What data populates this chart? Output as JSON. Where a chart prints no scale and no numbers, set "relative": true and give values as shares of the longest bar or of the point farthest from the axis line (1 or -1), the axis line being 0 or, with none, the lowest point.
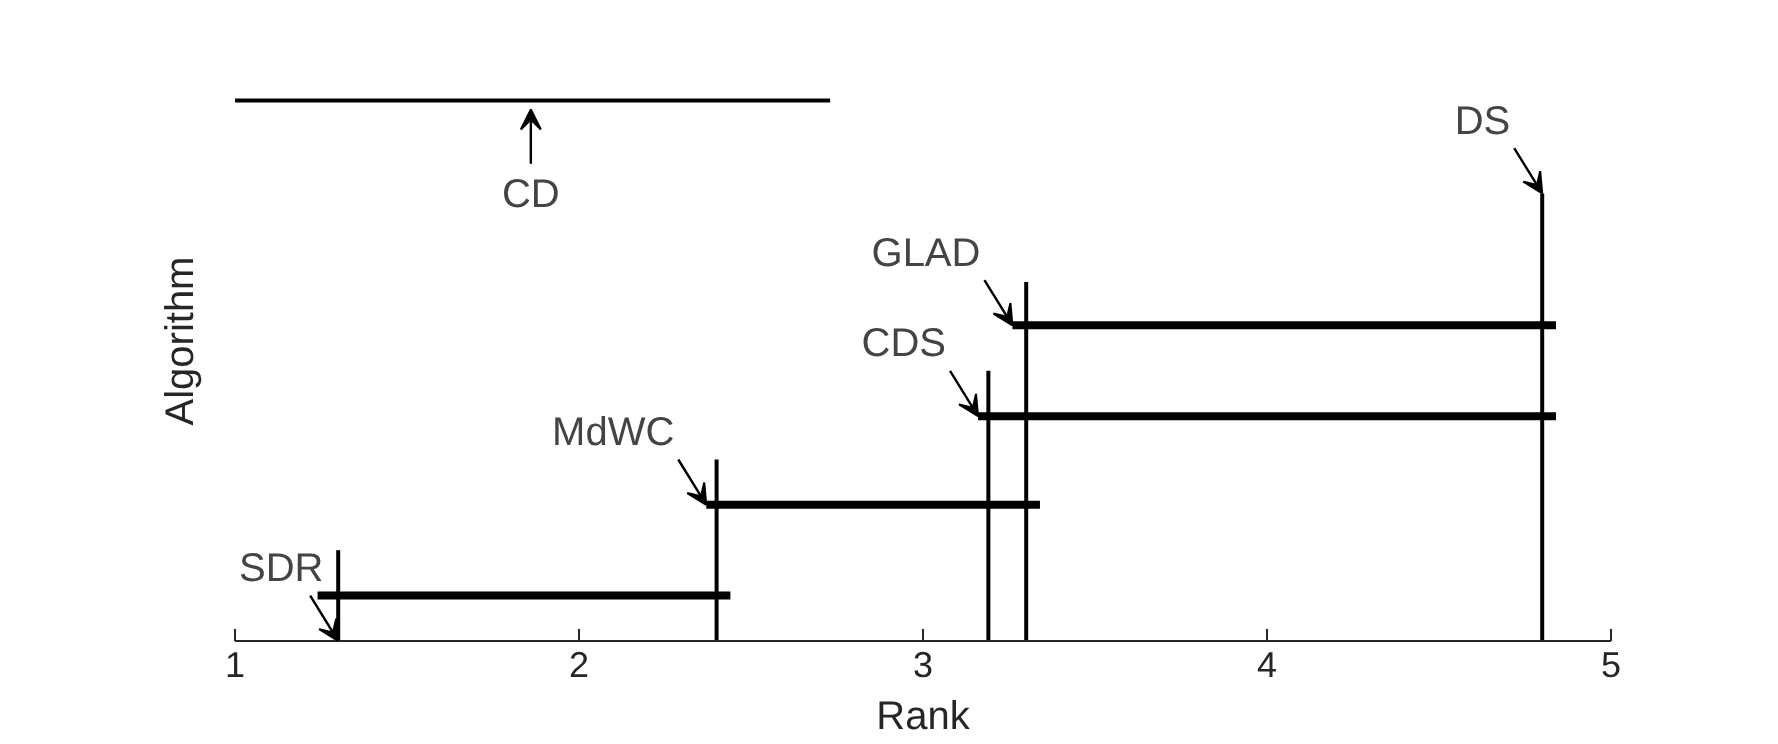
{
  "chart_data": {
    "type": "line",
    "relative": true,
    "xlabel": "Rank",
    "ylabel": "Algorithm",
    "xlim": [
      1,
      5
    ],
    "xticks": [
      1,
      2,
      3,
      4,
      5
    ],
    "grid": false,
    "marker": "none",
    "line_style": "solid",
    "series": [
      {
        "color": "#000000",
        "x": [
          1,
          2.73
        ],
        "values": [
          1,
          1
        ]
      },
      {
        "color": "#000000",
        "x": [
          1.3,
          1.3
        ],
        "values": [
          0,
          0.168
        ]
      },
      {
        "color": "#000000",
        "x": [
          1.24,
          2.44
        ],
        "values": [
          0.084,
          0.084
        ]
      },
      {
        "color": "#000000",
        "x": [
          2.4,
          2.4
        ],
        "values": [
          0,
          0.336
        ]
      },
      {
        "color": "#000000",
        "x": [
          2.37,
          3.34
        ],
        "values": [
          0.252,
          0.252
        ]
      },
      {
        "color": "#000000",
        "x": [
          3.19,
          3.19
        ],
        "values": [
          0,
          0.5
        ]
      },
      {
        "color": "#000000",
        "x": [
          3.16,
          4.84
        ],
        "values": [
          0.416,
          0.416
        ]
      },
      {
        "color": "#000000",
        "x": [
          3.3,
          3.3
        ],
        "values": [
          0,
          0.664
        ]
      },
      {
        "color": "#000000",
        "x": [
          3.26,
          4.84
        ],
        "values": [
          0.584,
          0.584
        ]
      },
      {
        "color": "#000000",
        "x": [
          4.8,
          4.8
        ],
        "values": [
          0,
          0.828
        ]
      }
    ],
    "annotations": [
      {
        "text": "CD",
        "x": 1.86,
        "y": 1
      },
      {
        "text": "SDR",
        "x": 1.3,
        "y": 0
      },
      {
        "text": "MdWC",
        "x": 2.37,
        "y": 0.252
      },
      {
        "text": "CDS",
        "x": 3.16,
        "y": 0.416
      },
      {
        "text": "GLAD",
        "x": 3.26,
        "y": 0.584
      },
      {
        "text": "DS",
        "x": 4.8,
        "y": 0.828
      }
    ]
  }
}
